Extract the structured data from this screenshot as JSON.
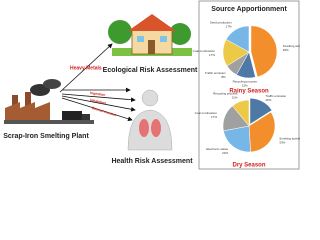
{
  "diagram": {
    "nodes": [
      {
        "label": "Ecological Risk Assessment"
      },
      {
        "label": "Scrap-Iron Smelting Plant"
      },
      {
        "label": "Health Risk Assessment"
      }
    ],
    "edges": [
      {
        "label": "Heavy Metals"
      },
      {
        "label": "Ingestion"
      },
      {
        "label": "Inhalation"
      },
      {
        "label": "Dermal contact"
      }
    ]
  },
  "panel": {
    "title": "Source Apportionment"
  },
  "chart_data": [
    {
      "type": "pie",
      "title": "Rainy Season",
      "categories": [
        "Smelting activities",
        "Recycling process",
        "Traffic emission",
        "Coal combustion",
        "Seed production"
      ],
      "values": [
        46,
        12,
        8,
        17,
        17
      ],
      "value_labels": [
        "46%",
        "12%",
        "8%",
        "17%",
        "17%"
      ],
      "colors": [
        "#f28e2b",
        "#4e79a7",
        "#a0a0a0",
        "#edc948",
        "#76b7e8"
      ]
    },
    {
      "type": "pie",
      "title": "Dry Season",
      "categories": [
        "Traffic emission",
        "Smelting activities",
        "Electronic waste",
        "Coal combustion",
        "Recycling process"
      ],
      "values": [
        16,
        33,
        23,
        17,
        11
      ],
      "value_labels": [
        "16%",
        "33%",
        "23%",
        "17%",
        "11%"
      ],
      "colors": [
        "#4e79a7",
        "#f28e2b",
        "#76b7e8",
        "#a0a0a0",
        "#edc948"
      ]
    }
  ]
}
